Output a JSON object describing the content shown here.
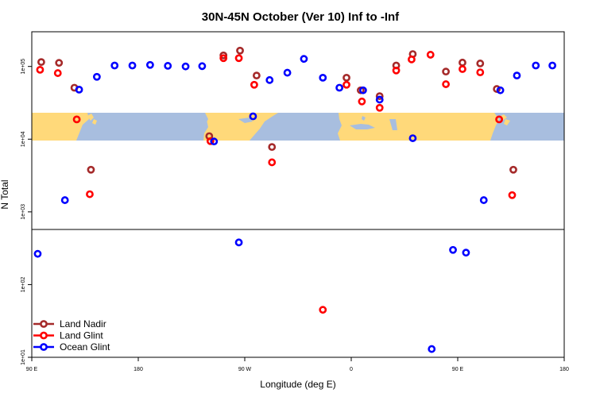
{
  "chart_data": {
    "type": "scatter",
    "title": "30N-45N October (Ver 10)   Inf to -Inf",
    "xlabel": "Longitude (deg E)",
    "ylabel": "N Total",
    "xlim": [
      90,
      540
    ],
    "ylim": [
      10,
      300000
    ],
    "yscale": "log",
    "x_ticks": [
      {
        "value": 90,
        "label": "90 E"
      },
      {
        "value": 180,
        "label": "180"
      },
      {
        "value": 270,
        "label": "90 W"
      },
      {
        "value": 360,
        "label": "0"
      },
      {
        "value": 450,
        "label": "90 E"
      },
      {
        "value": 540,
        "label": "180"
      }
    ],
    "y_ticks": [
      {
        "value": 10,
        "label": "1e+01"
      },
      {
        "value": 100,
        "label": "1e+02"
      },
      {
        "value": 1000,
        "label": "1e+03"
      },
      {
        "value": 10000,
        "label": "1e+04"
      },
      {
        "value": 100000,
        "label": "1e+05"
      }
    ],
    "legend_position": "bottom-left",
    "series": [
      {
        "name": "Land Nadir",
        "color": "#a52a2a",
        "points": [
          [
            98,
            115000
          ],
          [
            113,
            112000
          ],
          [
            126,
            51000
          ],
          [
            140,
            3800
          ],
          [
            240,
            11000
          ],
          [
            252,
            142000
          ],
          [
            266,
            165000
          ],
          [
            280,
            75000
          ],
          [
            293,
            7800
          ],
          [
            356,
            70000
          ],
          [
            368,
            47000
          ],
          [
            384,
            39000
          ],
          [
            398,
            103000
          ],
          [
            412,
            148000
          ],
          [
            440,
            85000
          ],
          [
            454,
            113000
          ],
          [
            469,
            110000
          ],
          [
            483,
            49000
          ],
          [
            497,
            3800
          ]
        ]
      },
      {
        "name": "Land Glint",
        "color": "#ff0000",
        "points": [
          [
            97,
            90000
          ],
          [
            112,
            81000
          ],
          [
            128,
            18700
          ],
          [
            139,
            1750
          ],
          [
            241,
            9400
          ],
          [
            252,
            130000
          ],
          [
            265,
            130000
          ],
          [
            278,
            56000
          ],
          [
            293,
            4800
          ],
          [
            336,
            45
          ],
          [
            356,
            56000
          ],
          [
            369,
            33000
          ],
          [
            384,
            27000
          ],
          [
            398,
            88000
          ],
          [
            411,
            125000
          ],
          [
            427,
            145000
          ],
          [
            440,
            57000
          ],
          [
            454,
            92000
          ],
          [
            469,
            83000
          ],
          [
            485,
            18700
          ],
          [
            496,
            1700
          ]
        ]
      },
      {
        "name": "Ocean Glint",
        "color": "#0000ff",
        "points": [
          [
            95,
            265
          ],
          [
            118,
            1450
          ],
          [
            130,
            48000
          ],
          [
            145,
            72000
          ],
          [
            160,
            103000
          ],
          [
            175,
            103000
          ],
          [
            190,
            105000
          ],
          [
            205,
            102000
          ],
          [
            220,
            100000
          ],
          [
            234,
            101000
          ],
          [
            244,
            9300
          ],
          [
            265,
            380
          ],
          [
            277,
            20600
          ],
          [
            291,
            65000
          ],
          [
            306,
            82000
          ],
          [
            320,
            127000
          ],
          [
            336,
            70000
          ],
          [
            350,
            51000
          ],
          [
            370,
            47000
          ],
          [
            384,
            35000
          ],
          [
            412,
            10300
          ],
          [
            428,
            13
          ],
          [
            446,
            300
          ],
          [
            457,
            275
          ],
          [
            472,
            1450
          ],
          [
            486,
            47000
          ],
          [
            500,
            75000
          ],
          [
            516,
            103000
          ],
          [
            530,
            103000
          ]
        ]
      }
    ]
  }
}
